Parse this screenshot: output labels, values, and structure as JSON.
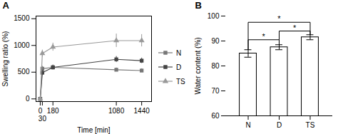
{
  "chart_data": [
    {
      "type": "line",
      "title": "A",
      "xlabel": "Time [min]",
      "ylabel": "Swelling ratio (%)",
      "x": [
        0,
        30,
        180,
        1080,
        1440
      ],
      "xlim": [
        -60,
        1580
      ],
      "xticks": [
        0,
        30,
        180,
        1080,
        1440
      ],
      "ylim": [
        -50,
        1550
      ],
      "yticks": [
        0,
        500,
        1000,
        1500
      ],
      "legend": "right",
      "series": [
        {
          "name": "N",
          "color": "#777777",
          "marker": "square",
          "values": [
            0,
            565,
            590,
            545,
            530
          ],
          "errors": [
            0,
            45,
            40,
            35,
            35
          ]
        },
        {
          "name": "D",
          "color": "#444444",
          "marker": "square",
          "values": [
            0,
            490,
            590,
            740,
            715
          ],
          "errors": [
            0,
            50,
            45,
            55,
            50
          ]
        },
        {
          "name": "TS",
          "color": "#999999",
          "marker": "triangle",
          "values": [
            0,
            850,
            970,
            1090,
            1090
          ],
          "errors": [
            0,
            65,
            75,
            125,
            115
          ]
        }
      ]
    },
    {
      "type": "bar",
      "title": "B",
      "ylabel": "Water content (%)",
      "categories": [
        "N",
        "D",
        "TS"
      ],
      "values": [
        85.0,
        87.5,
        91.5
      ],
      "errors": [
        1.5,
        1.0,
        1.0
      ],
      "color": "#ffffff",
      "ylim": [
        60,
        100
      ],
      "yticks": [
        60,
        70,
        80,
        90,
        100
      ],
      "annotations": [
        {
          "from": "N",
          "to": "D",
          "y": 90.5,
          "text": "*"
        },
        {
          "from": "D",
          "to": "TS",
          "y": 94.0,
          "text": "*"
        },
        {
          "from": "N",
          "to": "TS",
          "y": 97.5,
          "text": "*"
        }
      ]
    }
  ]
}
